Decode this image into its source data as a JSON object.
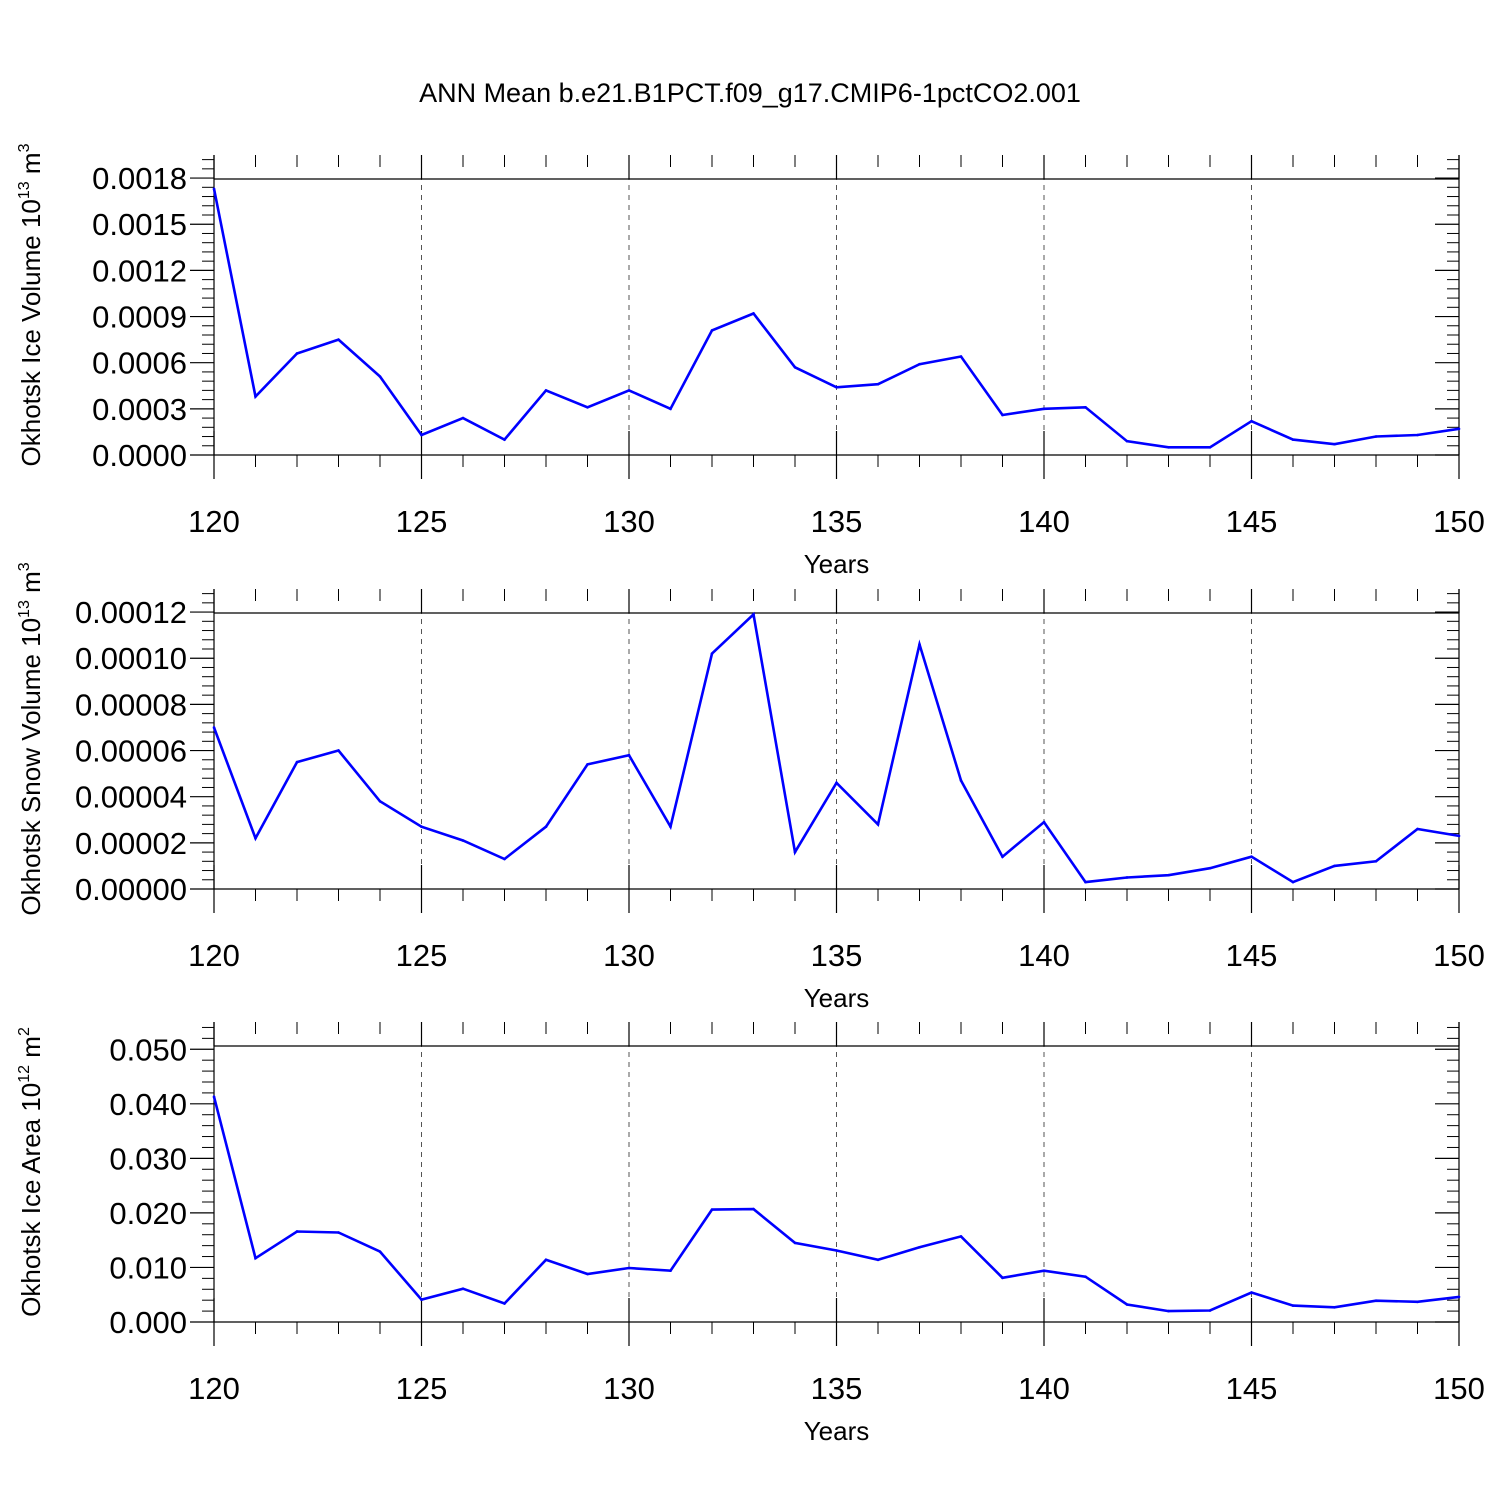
{
  "title": "ANN Mean b.e21.B1PCT.f09_g17.CMIP6-1pctCO2.001",
  "colors": {
    "line": "#0000ff",
    "axis": "#000000",
    "grid": "#555555"
  },
  "chart_data": [
    {
      "type": "line",
      "name": "ice-volume",
      "ylabel": "Okhotsk Ice Volume 10",
      "ylabel_exp": "13",
      "ylabel_unit": " m",
      "ylabel_unit_exp": "3",
      "xlabel": "Years",
      "xlim": [
        120,
        150
      ],
      "ylim": [
        0,
        0.00195
      ],
      "yticks": [
        0.0,
        0.0003,
        0.0006,
        0.0009,
        0.0012,
        0.0015,
        0.0018
      ],
      "ytick_labels": [
        "0.0000",
        "0.0003",
        "0.0006",
        "0.0009",
        "0.0012",
        "0.0015",
        "0.0018"
      ],
      "xticks": [
        120,
        125,
        130,
        135,
        140,
        145,
        150
      ],
      "xtick_labels": [
        "120",
        "125",
        "130",
        "135",
        "140",
        "145",
        "150"
      ],
      "grid": "vertical dashed",
      "x": [
        120,
        121,
        122,
        123,
        124,
        125,
        126,
        127,
        128,
        129,
        130,
        131,
        132,
        133,
        134,
        135,
        136,
        137,
        138,
        139,
        140,
        141,
        142,
        143,
        144,
        145,
        146,
        147,
        148,
        149,
        150
      ],
      "y": [
        0.00173,
        0.00038,
        0.00066,
        0.00075,
        0.00051,
        0.00013,
        0.00024,
        0.0001,
        0.00042,
        0.00031,
        0.00042,
        0.0003,
        0.00081,
        0.00092,
        0.00057,
        0.00044,
        0.00046,
        0.00059,
        0.00064,
        0.00026,
        0.0003,
        0.00031,
        9e-05,
        5e-05,
        5e-05,
        0.00022,
        0.0001,
        7e-05,
        0.00012,
        0.00013,
        0.00017
      ]
    },
    {
      "type": "line",
      "name": "snow-volume",
      "ylabel": "Okhotsk Snow Volume 10",
      "ylabel_exp": "13",
      "ylabel_unit": " m",
      "ylabel_unit_exp": "3",
      "xlabel": "Years",
      "xlim": [
        120,
        150
      ],
      "ylim": [
        0,
        0.00013
      ],
      "yticks": [
        0.0,
        2e-05,
        4e-05,
        6e-05,
        8e-05,
        0.0001,
        0.00012
      ],
      "ytick_labels": [
        "0.00000",
        "0.00002",
        "0.00004",
        "0.00006",
        "0.00008",
        "0.00010",
        "0.00012"
      ],
      "xticks": [
        120,
        125,
        130,
        135,
        140,
        145,
        150
      ],
      "xtick_labels": [
        "120",
        "125",
        "130",
        "135",
        "140",
        "145",
        "150"
      ],
      "grid": "vertical dashed",
      "x": [
        120,
        121,
        122,
        123,
        124,
        125,
        126,
        127,
        128,
        129,
        130,
        131,
        132,
        133,
        134,
        135,
        136,
        137,
        138,
        139,
        140,
        141,
        142,
        143,
        144,
        145,
        146,
        147,
        148,
        149,
        150
      ],
      "y": [
        7e-05,
        2.2e-05,
        5.5e-05,
        6e-05,
        3.8e-05,
        2.7e-05,
        2.1e-05,
        1.3e-05,
        2.7e-05,
        5.4e-05,
        5.8e-05,
        2.7e-05,
        0.000102,
        0.000119,
        1.6e-05,
        4.6e-05,
        2.8e-05,
        0.000106,
        4.7e-05,
        1.4e-05,
        2.9e-05,
        3e-06,
        5e-06,
        6e-06,
        9e-06,
        1.4e-05,
        3e-06,
        1e-05,
        1.2e-05,
        2.6e-05,
        2.3e-05
      ]
    },
    {
      "type": "line",
      "name": "ice-area",
      "ylabel": "Okhotsk Ice Area 10",
      "ylabel_exp": "12",
      "ylabel_unit": " m",
      "ylabel_unit_exp": "2",
      "xlabel": "Years",
      "xlim": [
        120,
        150
      ],
      "ylim": [
        0,
        0.055
      ],
      "yticks": [
        0.0,
        0.01,
        0.02,
        0.03,
        0.04,
        0.05
      ],
      "ytick_labels": [
        "0.000",
        "0.010",
        "0.020",
        "0.030",
        "0.040",
        "0.050"
      ],
      "xticks": [
        120,
        125,
        130,
        135,
        140,
        145,
        150
      ],
      "xtick_labels": [
        "120",
        "125",
        "130",
        "135",
        "140",
        "145",
        "150"
      ],
      "grid": "vertical dashed",
      "x": [
        120,
        121,
        122,
        123,
        124,
        125,
        126,
        127,
        128,
        129,
        130,
        131,
        132,
        133,
        134,
        135,
        136,
        137,
        138,
        139,
        140,
        141,
        142,
        143,
        144,
        145,
        146,
        147,
        148,
        149,
        150
      ],
      "y": [
        0.0413,
        0.0117,
        0.0166,
        0.0164,
        0.0129,
        0.0041,
        0.0061,
        0.0034,
        0.0114,
        0.0088,
        0.0099,
        0.0094,
        0.0206,
        0.0207,
        0.0145,
        0.0131,
        0.0114,
        0.0137,
        0.0157,
        0.0081,
        0.0094,
        0.0083,
        0.0032,
        0.002,
        0.0021,
        0.0054,
        0.003,
        0.0027,
        0.0039,
        0.0037,
        0.0046
      ]
    }
  ]
}
